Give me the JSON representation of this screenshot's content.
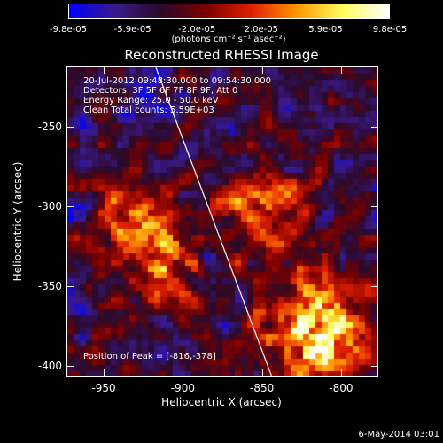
{
  "colorbar": {
    "stops": [
      "#0000ff",
      "#3a1a8a",
      "#2a0a2a",
      "#7a0000",
      "#e02000",
      "#ff9a00",
      "#ffff60",
      "#ffffff"
    ],
    "tick_labels": [
      "-9.8e-05",
      "-5.9e-05",
      "-2.0e-05",
      "2.0e-05",
      "5.9e-05",
      "9.8e-05"
    ],
    "unit_label": "(photons cm⁻² s⁻¹ asec⁻²)"
  },
  "plot": {
    "title": "Reconstructed RHESSI Image",
    "info_lines": [
      "20-Jul-2012 09:48:30.000 to 09:54:30.000",
      "Detectors: 3F 5F 6F 7F 8F 9F, Att 0",
      "Energy Range: 25.0 - 50.0 keV",
      "Clean     Total counts: 5.59E+03"
    ],
    "peak_label": "Position of Peak = [-816,-378]",
    "xlabel": "Heliocentric X (arcsec)",
    "ylabel": "Heliocentric Y (arcsec)",
    "x_ticks": [
      "-950",
      "-900",
      "-850",
      "-800"
    ],
    "y_ticks": [
      "-250",
      "-300",
      "-350",
      "-400"
    ],
    "x_tick_values": [
      -950,
      -900,
      -850,
      -800
    ],
    "y_tick_values": [
      -250,
      -300,
      -350,
      -400
    ],
    "xlim": [
      -973,
      -777
    ],
    "ylim": [
      -406,
      -213
    ],
    "limb_line": {
      "x1": -917,
      "y1": -213,
      "x2": -844,
      "y2": -406
    },
    "bright_sources": [
      {
        "x": -816,
        "y": -378,
        "strength": 1.0
      },
      {
        "x": -845,
        "y": -300,
        "strength": 0.55
      },
      {
        "x": -930,
        "y": -310,
        "strength": 0.45
      },
      {
        "x": -905,
        "y": -340,
        "strength": 0.35
      }
    ]
  },
  "footer": {
    "timestamp": "6-May-2014 03:01"
  }
}
